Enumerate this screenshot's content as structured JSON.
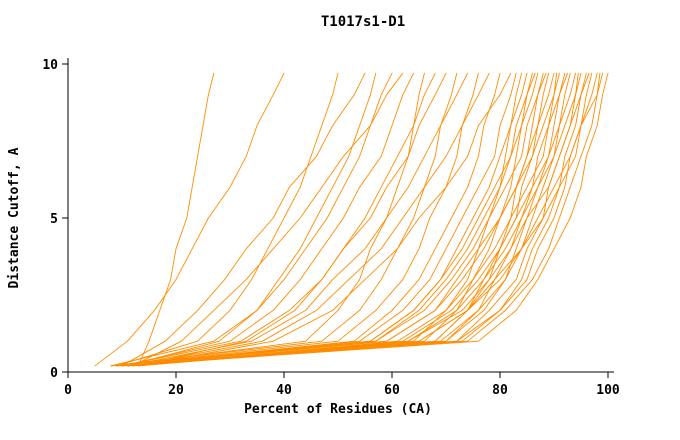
{
  "figure": {
    "background": "#ffffff"
  },
  "chart_data": {
    "type": "line",
    "title": "T1017s1-D1",
    "xlabel": "Percent of Residues (CA)",
    "ylabel": "Distance Cutoff, A",
    "xlim": [
      0,
      100
    ],
    "ylim": [
      0,
      10
    ],
    "x_ticks": [
      0,
      20,
      40,
      60,
      80,
      100
    ],
    "y_ticks": [
      0,
      5,
      10
    ],
    "grid": false,
    "legend_position": "none",
    "line_color": "#ff8c00",
    "axis_color": "#000000",
    "y_levels": [
      0.2,
      1,
      2,
      3,
      4,
      5,
      6,
      7,
      8,
      9,
      9.7
    ],
    "series": [
      {
        "x": [
          13,
          15,
          17,
          19,
          20,
          22,
          23,
          24,
          25,
          26,
          27
        ]
      },
      {
        "x": [
          5,
          11,
          16,
          20,
          23,
          26,
          30,
          33,
          35,
          38,
          40
        ]
      },
      {
        "x": [
          9,
          24,
          30,
          34,
          37,
          40,
          43,
          45,
          47,
          49,
          50
        ]
      },
      {
        "x": [
          10,
          18,
          24,
          29,
          33,
          38,
          41,
          46,
          49,
          53,
          55
        ]
      },
      {
        "x": [
          11,
          28,
          35,
          39,
          43,
          46,
          49,
          52,
          54,
          56,
          57
        ]
      },
      {
        "x": [
          8,
          27,
          35,
          40,
          44,
          48,
          51,
          54,
          56,
          58,
          60
        ]
      },
      {
        "x": [
          12,
          21,
          27,
          33,
          38,
          43,
          47,
          51,
          56,
          59,
          62
        ]
      },
      {
        "x": [
          10,
          30,
          38,
          43,
          47,
          51,
          54,
          58,
          60,
          62,
          64
        ]
      },
      {
        "x": [
          9,
          44,
          50,
          54,
          56,
          59,
          61,
          63,
          64,
          65,
          66
        ]
      },
      {
        "x": [
          13,
          33,
          42,
          47,
          51,
          55,
          58,
          61,
          64,
          66,
          68
        ]
      },
      {
        "x": [
          10,
          32,
          41,
          47,
          51,
          56,
          59,
          63,
          65,
          68,
          70
        ]
      },
      {
        "x": [
          8,
          47,
          54,
          58,
          61,
          64,
          66,
          68,
          69,
          71,
          72
        ]
      },
      {
        "x": [
          11,
          34,
          44,
          49,
          55,
          59,
          63,
          66,
          69,
          72,
          74
        ]
      },
      {
        "x": [
          9,
          50,
          57,
          62,
          65,
          67,
          70,
          72,
          73,
          75,
          76
        ]
      },
      {
        "x": [
          12,
          36,
          46,
          52,
          58,
          62,
          66,
          70,
          73,
          76,
          78
        ]
      },
      {
        "x": [
          10,
          53,
          60,
          65,
          68,
          71,
          74,
          76,
          77,
          79,
          80
        ]
      },
      {
        "x": [
          13,
          38,
          49,
          55,
          61,
          65,
          70,
          74,
          76,
          80,
          82
        ]
      },
      {
        "x": [
          9,
          54,
          62,
          67,
          70,
          73,
          76,
          79,
          80,
          82,
          83
        ]
      },
      {
        "x": [
          11,
          64,
          70,
          74,
          76,
          78,
          80,
          81,
          82,
          83,
          84
        ]
      },
      {
        "x": [
          10,
          56,
          64,
          69,
          72,
          75,
          78,
          80,
          82,
          84,
          85
        ]
      },
      {
        "x": [
          12,
          66,
          72,
          75,
          78,
          80,
          82,
          83,
          84,
          85,
          86
        ]
      },
      {
        "x": [
          8,
          56,
          64,
          69,
          73,
          76,
          79,
          82,
          83,
          85,
          86.5
        ]
      },
      {
        "x": [
          10,
          57,
          65,
          70,
          74,
          77,
          80,
          82,
          84,
          86,
          87
        ]
      },
      {
        "x": [
          13,
          68,
          74,
          77,
          80,
          82,
          83,
          85,
          86,
          87,
          88
        ]
      },
      {
        "x": [
          9,
          57,
          66,
          71,
          75,
          78,
          81,
          84,
          85,
          87,
          88.5
        ]
      },
      {
        "x": [
          11,
          68,
          74,
          78,
          80,
          83,
          84,
          86,
          87,
          88,
          89
        ]
      },
      {
        "x": [
          10,
          59,
          68,
          72,
          76,
          80,
          83,
          85,
          87,
          89,
          90
        ]
      },
      {
        "x": [
          12,
          69,
          76,
          79,
          82,
          84,
          86,
          87,
          89,
          90,
          90.5
        ]
      },
      {
        "x": [
          8,
          59,
          68,
          73,
          77,
          80,
          83,
          86,
          88,
          90,
          91
        ]
      },
      {
        "x": [
          10,
          70,
          76,
          81,
          83,
          85,
          87,
          89,
          90,
          91,
          92
        ]
      },
      {
        "x": [
          13,
          61,
          70,
          75,
          79,
          82,
          85,
          88,
          89,
          91,
          92.5
        ]
      },
      {
        "x": [
          9,
          70,
          77,
          81,
          84,
          86,
          88,
          90,
          91,
          92,
          93
        ]
      },
      {
        "x": [
          11,
          62,
          71,
          76,
          80,
          83,
          86,
          89,
          91,
          93,
          94
        ]
      },
      {
        "x": [
          10,
          72,
          78,
          83,
          85,
          88,
          89,
          91,
          93,
          94,
          94.5
        ]
      },
      {
        "x": [
          12,
          63,
          72,
          77,
          81,
          84,
          87,
          90,
          92,
          94,
          95
        ]
      },
      {
        "x": [
          9,
          72,
          80,
          84,
          86,
          89,
          91,
          92,
          94,
          95,
          96
        ]
      },
      {
        "x": [
          11,
          63,
          73,
          78,
          82,
          85,
          89,
          91,
          93,
          95,
          96.5
        ]
      },
      {
        "x": [
          10,
          73,
          80,
          85,
          87,
          90,
          92,
          93,
          95,
          96,
          97
        ]
      },
      {
        "x": [
          13,
          65,
          74,
          79,
          84,
          87,
          90,
          93,
          95,
          97,
          98
        ]
      },
      {
        "x": [
          9,
          74,
          81,
          86,
          89,
          91,
          93,
          95,
          97,
          98,
          98.5
        ]
      },
      {
        "x": [
          11,
          65,
          74,
          80,
          84,
          88,
          91,
          94,
          95,
          98,
          99
        ]
      },
      {
        "x": [
          10,
          76,
          83,
          87,
          90,
          93,
          95,
          96,
          98,
          99,
          100
        ]
      }
    ]
  }
}
